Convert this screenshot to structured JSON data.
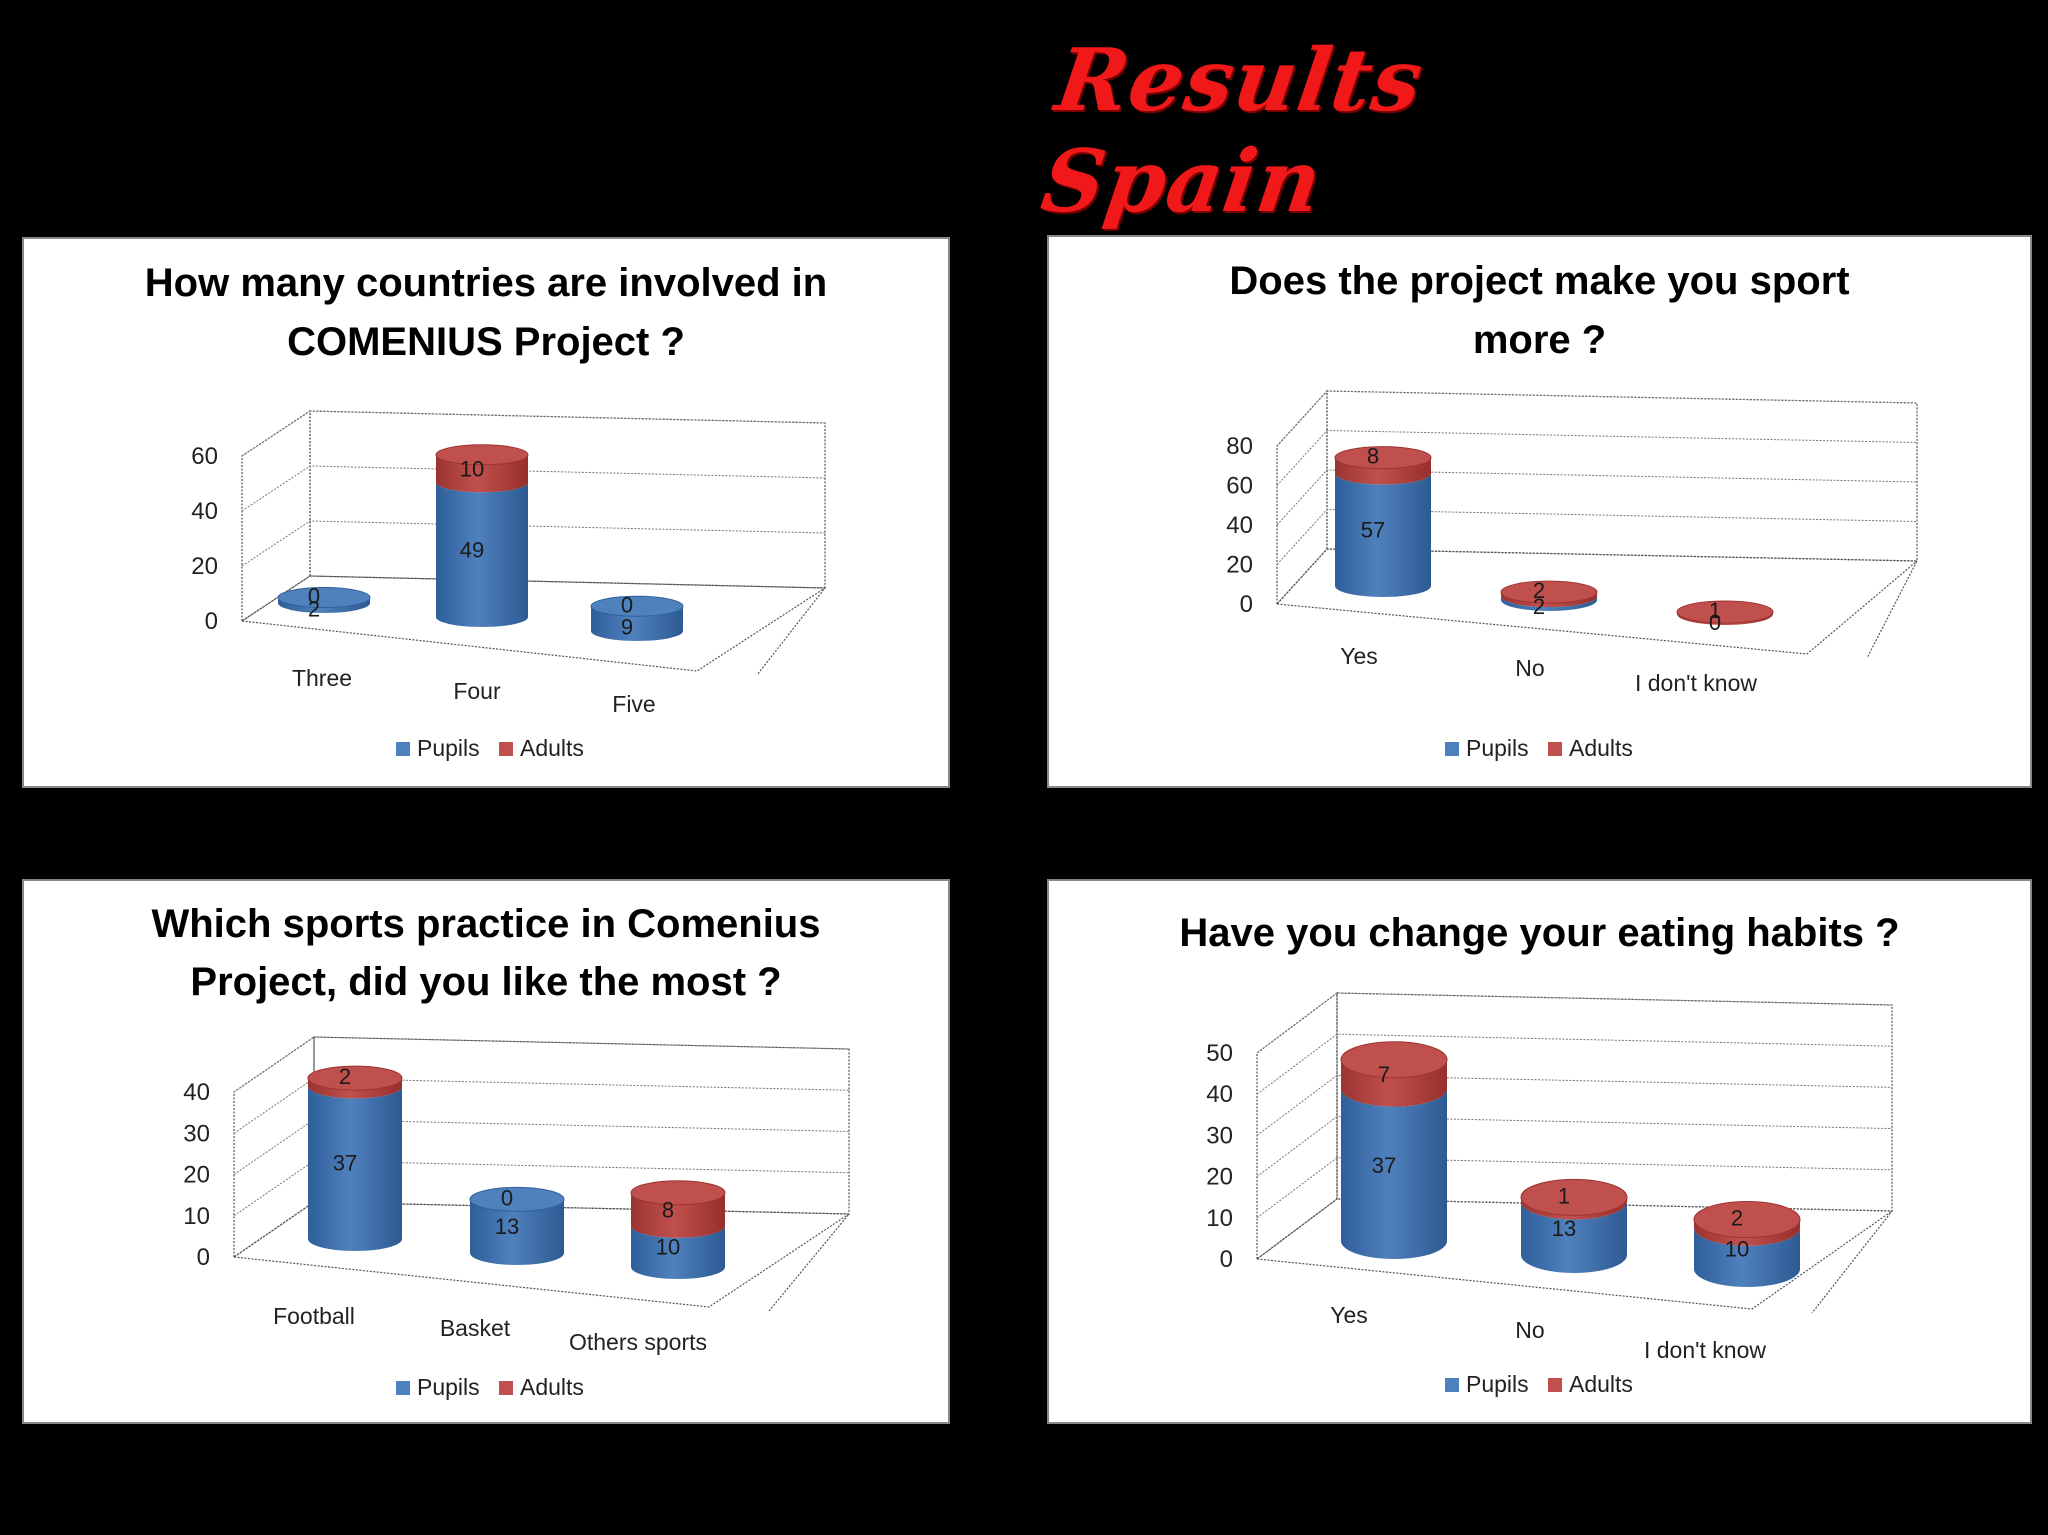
{
  "slide": {
    "title": "Results Spain"
  },
  "colors": {
    "pupils": "#4f81bd",
    "pupils_dark": "#3a6ba8",
    "adults": "#c0504d",
    "adults_dark": "#a83a37"
  },
  "legend": [
    "Pupils",
    "Adults"
  ],
  "chart_data": [
    {
      "type": "bar",
      "title": "How many countries are involved in COMENIUS Project ?",
      "categories": [
        "Three",
        "Four",
        "Five"
      ],
      "series": [
        {
          "name": "Pupils",
          "values": [
            2,
            49,
            9
          ]
        },
        {
          "name": "Adults",
          "values": [
            0,
            10,
            0
          ]
        }
      ],
      "stacked": true,
      "ylim": [
        0,
        60
      ],
      "yticks": [
        0,
        20,
        40,
        60
      ],
      "legend_position": "bottom"
    },
    {
      "type": "bar",
      "title": "Does the project make you sport more ?",
      "categories": [
        "Yes",
        "No",
        "I don't know"
      ],
      "series": [
        {
          "name": "Pupils",
          "values": [
            57,
            2,
            0
          ]
        },
        {
          "name": "Adults",
          "values": [
            8,
            2,
            1
          ]
        }
      ],
      "stacked": true,
      "ylim": [
        0,
        80
      ],
      "yticks": [
        0,
        20,
        40,
        60,
        80
      ],
      "legend_position": "bottom"
    },
    {
      "type": "bar",
      "title": "Which sports practice in Comenius Project, did you like the most ?",
      "categories": [
        "Football",
        "Basket",
        "Others sports"
      ],
      "series": [
        {
          "name": "Pupils",
          "values": [
            37,
            13,
            10
          ]
        },
        {
          "name": "Adults",
          "values": [
            2,
            0,
            8
          ]
        }
      ],
      "stacked": true,
      "ylim": [
        0,
        40
      ],
      "yticks": [
        0,
        10,
        20,
        30,
        40
      ],
      "legend_position": "bottom"
    },
    {
      "type": "bar",
      "title": "Have you change your eating habits ?",
      "categories": [
        "Yes",
        "No",
        "I don't know"
      ],
      "series": [
        {
          "name": "Pupils",
          "values": [
            37,
            13,
            10
          ]
        },
        {
          "name": "Adults",
          "values": [
            7,
            1,
            2
          ]
        }
      ],
      "stacked": true,
      "ylim": [
        0,
        50
      ],
      "yticks": [
        0,
        10,
        20,
        30,
        40,
        50
      ],
      "legend_position": "bottom"
    }
  ]
}
